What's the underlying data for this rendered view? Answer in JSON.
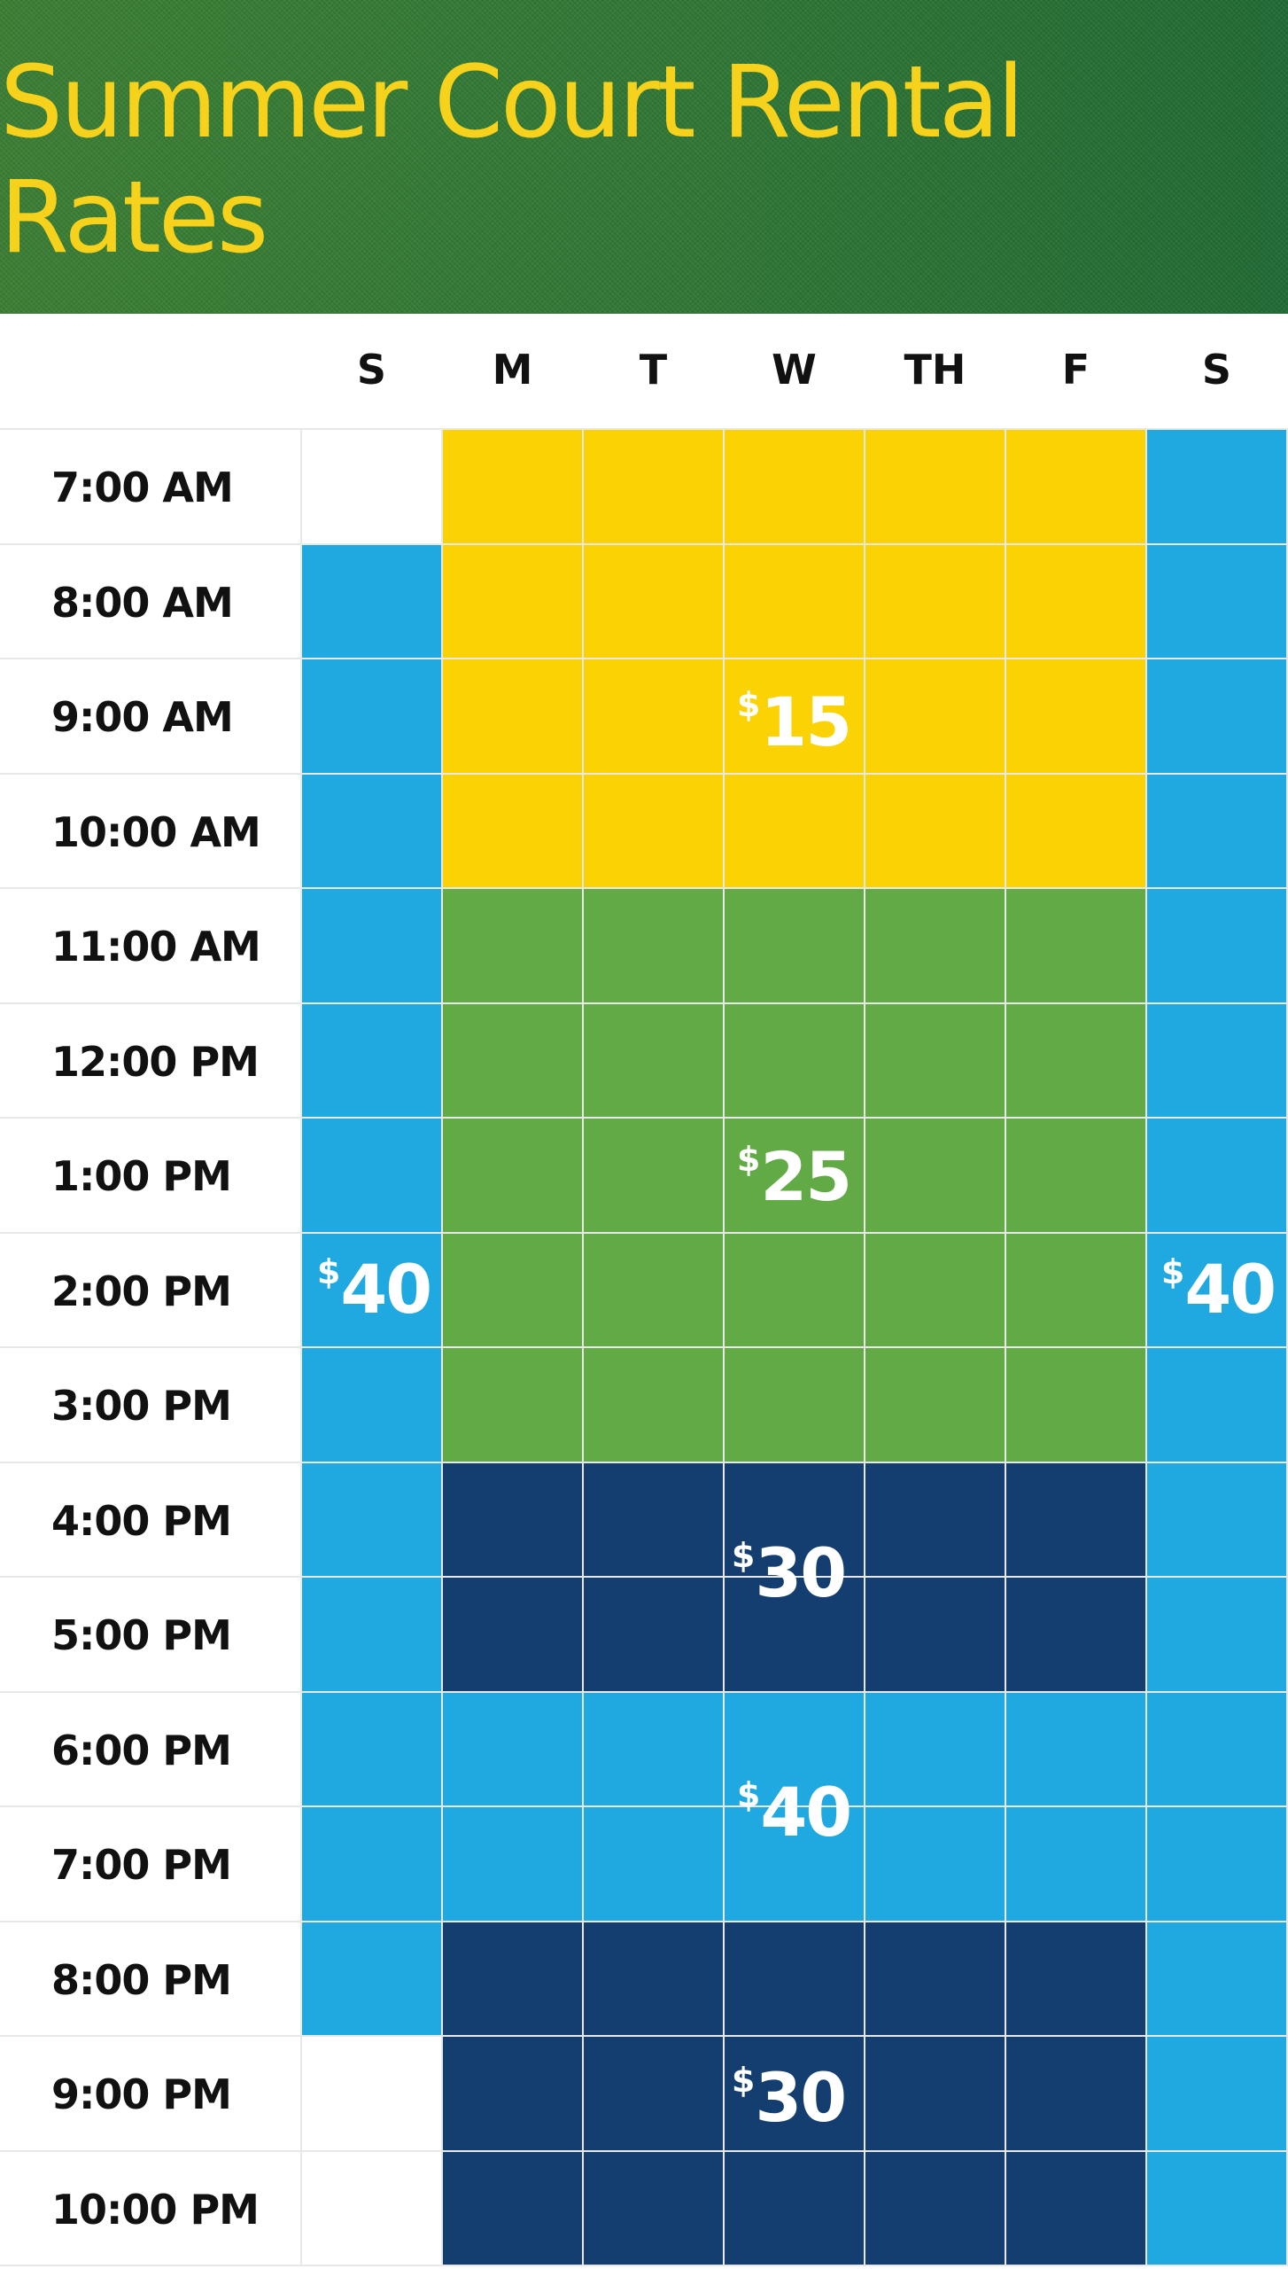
{
  "header": {
    "title": "Summer Court Rental Rates"
  },
  "days": [
    "S",
    "M",
    "T",
    "W",
    "TH",
    "F",
    "S"
  ],
  "times": [
    "7:00 AM",
    "8:00 AM",
    "9:00 AM",
    "10:00 AM",
    "11:00 AM",
    "12:00 PM",
    "1:00 PM",
    "2:00 PM",
    "3:00 PM",
    "4:00 PM",
    "5:00 PM",
    "6:00 PM",
    "7:00 PM",
    "8:00 PM",
    "9:00 PM",
    "10:00 PM"
  ],
  "colors": {
    "yellow": "#fbd203",
    "green": "#62aa45",
    "navy": "#143e6f",
    "blue": "#20a8e0",
    "none": "#ffffff"
  },
  "grid": [
    [
      "none",
      "yellow",
      "yellow",
      "yellow",
      "yellow",
      "yellow",
      "blue"
    ],
    [
      "blue",
      "yellow",
      "yellow",
      "yellow",
      "yellow",
      "yellow",
      "blue"
    ],
    [
      "blue",
      "yellow",
      "yellow",
      "yellow",
      "yellow",
      "yellow",
      "blue"
    ],
    [
      "blue",
      "yellow",
      "yellow",
      "yellow",
      "yellow",
      "yellow",
      "blue"
    ],
    [
      "blue",
      "green",
      "green",
      "green",
      "green",
      "green",
      "blue"
    ],
    [
      "blue",
      "green",
      "green",
      "green",
      "green",
      "green",
      "blue"
    ],
    [
      "blue",
      "green",
      "green",
      "green",
      "green",
      "green",
      "blue"
    ],
    [
      "blue",
      "green",
      "green",
      "green",
      "green",
      "green",
      "blue"
    ],
    [
      "blue",
      "green",
      "green",
      "green",
      "green",
      "green",
      "blue"
    ],
    [
      "blue",
      "navy",
      "navy",
      "navy",
      "navy",
      "navy",
      "blue"
    ],
    [
      "blue",
      "navy",
      "navy",
      "navy",
      "navy",
      "navy",
      "blue"
    ],
    [
      "blue",
      "blue",
      "blue",
      "blue",
      "blue",
      "blue",
      "blue"
    ],
    [
      "blue",
      "blue",
      "blue",
      "blue",
      "blue",
      "blue",
      "blue"
    ],
    [
      "blue",
      "navy",
      "navy",
      "navy",
      "navy",
      "navy",
      "blue"
    ],
    [
      "none",
      "navy",
      "navy",
      "navy",
      "navy",
      "navy",
      "blue"
    ],
    [
      "none",
      "navy",
      "navy",
      "navy",
      "navy",
      "navy",
      "blue"
    ]
  ],
  "prices": [
    {
      "symbol": "$",
      "amount": "15"
    },
    {
      "symbol": "$",
      "amount": "25"
    },
    {
      "symbol": "$",
      "amount": "30"
    },
    {
      "symbol": "$",
      "amount": "40"
    },
    {
      "symbol": "$",
      "amount": "30"
    },
    {
      "symbol": "$",
      "amount": "40"
    },
    {
      "symbol": "$",
      "amount": "40"
    }
  ]
}
